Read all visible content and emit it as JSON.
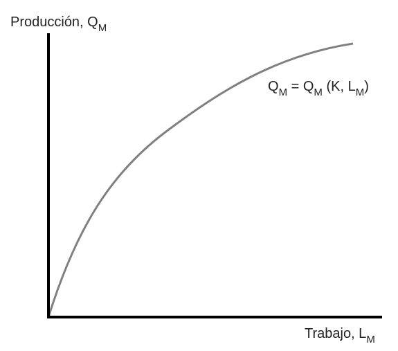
{
  "y_axis_label": {
    "text": "Producción, Q",
    "sub": "M"
  },
  "x_axis_label": {
    "text": "Trabajo, L",
    "sub": "M"
  },
  "curve_label": [
    {
      "text": "Q",
      "sub": "M"
    },
    {
      "text": " = Q",
      "sub": "M"
    },
    {
      "text": " (K, L",
      "sub": "M"
    },
    {
      "text": ")"
    }
  ]
}
